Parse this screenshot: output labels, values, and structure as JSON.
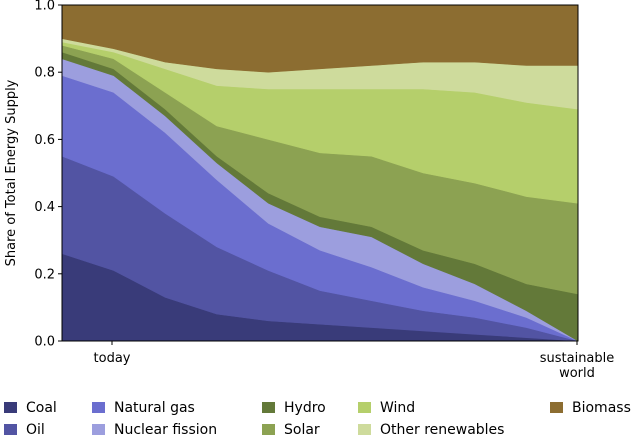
{
  "chart_data": {
    "type": "area",
    "stacked": true,
    "ylabel": "Share of Total Energy Supply",
    "xlabel": "",
    "ylim": [
      0,
      1.0
    ],
    "yticks": [
      0.0,
      0.2,
      0.4,
      0.6,
      0.8,
      1.0
    ],
    "ytick_labels": [
      "0.0",
      "0.2",
      "0.4",
      "0.6",
      "0.8",
      "1.0"
    ],
    "x": [
      0.0,
      0.1,
      0.2,
      0.3,
      0.4,
      0.5,
      0.6,
      0.7,
      0.8,
      0.9,
      1.0
    ],
    "x_tick_positions": [
      0.0,
      1.0
    ],
    "x_tick_labels": [
      [
        "today"
      ],
      [
        "sustainable",
        "world"
      ]
    ],
    "legend_position": "bottom",
    "grid": false,
    "series": [
      {
        "name": "Coal",
        "color": "#393b79",
        "values": [
          0.26,
          0.21,
          0.13,
          0.08,
          0.06,
          0.05,
          0.04,
          0.03,
          0.02,
          0.01,
          0.0
        ]
      },
      {
        "name": "Oil",
        "color": "#5254a3",
        "values": [
          0.29,
          0.28,
          0.25,
          0.2,
          0.15,
          0.1,
          0.08,
          0.06,
          0.05,
          0.03,
          0.0
        ]
      },
      {
        "name": "Natural gas",
        "color": "#6b6ecf",
        "values": [
          0.24,
          0.25,
          0.24,
          0.2,
          0.14,
          0.12,
          0.1,
          0.07,
          0.05,
          0.03,
          0.0
        ]
      },
      {
        "name": "Nuclear fission",
        "color": "#9c9ede",
        "values": [
          0.05,
          0.05,
          0.05,
          0.05,
          0.06,
          0.07,
          0.09,
          0.07,
          0.05,
          0.02,
          0.0
        ]
      },
      {
        "name": "Hydro",
        "color": "#637939",
        "values": [
          0.02,
          0.02,
          0.02,
          0.02,
          0.03,
          0.03,
          0.03,
          0.04,
          0.06,
          0.08,
          0.14
        ]
      },
      {
        "name": "Solar",
        "color": "#8ca252",
        "values": [
          0.02,
          0.03,
          0.05,
          0.09,
          0.16,
          0.19,
          0.21,
          0.23,
          0.24,
          0.26,
          0.27
        ]
      },
      {
        "name": "Wind",
        "color": "#b5cf6b",
        "values": [
          0.01,
          0.02,
          0.07,
          0.12,
          0.15,
          0.19,
          0.2,
          0.25,
          0.27,
          0.28,
          0.28
        ]
      },
      {
        "name": "Other renewables",
        "color": "#cedb9c",
        "values": [
          0.01,
          0.01,
          0.02,
          0.05,
          0.05,
          0.06,
          0.07,
          0.08,
          0.09,
          0.11,
          0.13
        ]
      },
      {
        "name": "Biomass",
        "color": "#8c6d31",
        "values": [
          0.1,
          0.13,
          0.17,
          0.19,
          0.2,
          0.19,
          0.18,
          0.17,
          0.17,
          0.18,
          0.18
        ]
      }
    ]
  }
}
